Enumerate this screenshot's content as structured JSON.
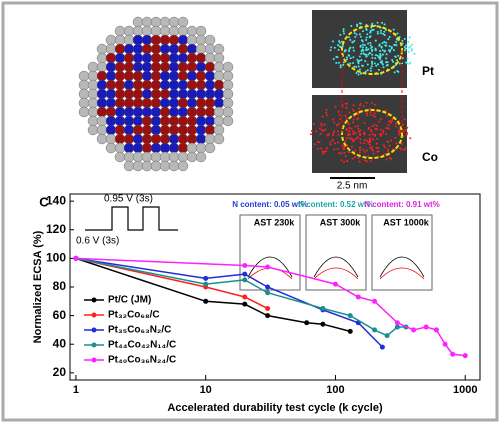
{
  "image_labels": {
    "pt": "Pt",
    "co": "Co",
    "scale": "2.5 nm"
  },
  "waveform": {
    "high": "0.95 V (3s)",
    "low": "0.6 V (3s)"
  },
  "insets": [
    {
      "title": "N content: 0.05 wt%",
      "label": "AST 230k",
      "color": "#1f3fd6"
    },
    {
      "title": "N content: 0.52 wt%",
      "label": "AST 300k",
      "color": "#1aa6a6"
    },
    {
      "title": "N content: 0.91 wt%",
      "label": "AST 1000k",
      "color": "#e020e0"
    }
  ],
  "chart_data": {
    "type": "line",
    "panel": "C",
    "xlabel": "Accelerated durability test cycle (k cycle)",
    "ylabel": "Normalized ECSA (%)",
    "xscale": "log",
    "xlim": [
      0.9,
      1300
    ],
    "xticks": [
      1,
      10,
      100,
      1000
    ],
    "ylim": [
      15,
      145
    ],
    "yticks": [
      20,
      40,
      60,
      80,
      100,
      120,
      140
    ],
    "series": [
      {
        "name": "Pt/C (JM)",
        "color": "#000000",
        "x": [
          1,
          10,
          20,
          30,
          60,
          80,
          130
        ],
        "values": [
          100,
          70,
          68,
          60,
          55,
          54,
          49
        ]
      },
      {
        "name": "Pt₃₂Co₆₈/C",
        "color": "#ff2020",
        "x": [
          1,
          10,
          20,
          30
        ],
        "values": [
          100,
          80,
          73,
          65
        ]
      },
      {
        "name": "Pt₃₅Co₆₃N₂/C",
        "color": "#1f2fd6",
        "x": [
          1,
          10,
          20,
          30,
          80,
          150,
          230
        ],
        "values": [
          100,
          86,
          89,
          80,
          64,
          55,
          38
        ]
      },
      {
        "name": "Pt₄₄Co₄₂N₁₄/C",
        "color": "#1a8f8f",
        "x": [
          1,
          10,
          20,
          30,
          80,
          130,
          200,
          250,
          300,
          350
        ],
        "values": [
          100,
          82,
          85,
          76,
          65,
          60,
          50,
          46,
          52,
          52
        ]
      },
      {
        "name": "Pt₄₀Co₃₆N₂₄/C",
        "color": "#ff20ff",
        "x": [
          1,
          20,
          30,
          100,
          150,
          200,
          300,
          400,
          500,
          600,
          700,
          800,
          1000
        ],
        "values": [
          100,
          95,
          94,
          82,
          73,
          70,
          55,
          50,
          52,
          50,
          40,
          33,
          32
        ]
      }
    ]
  }
}
